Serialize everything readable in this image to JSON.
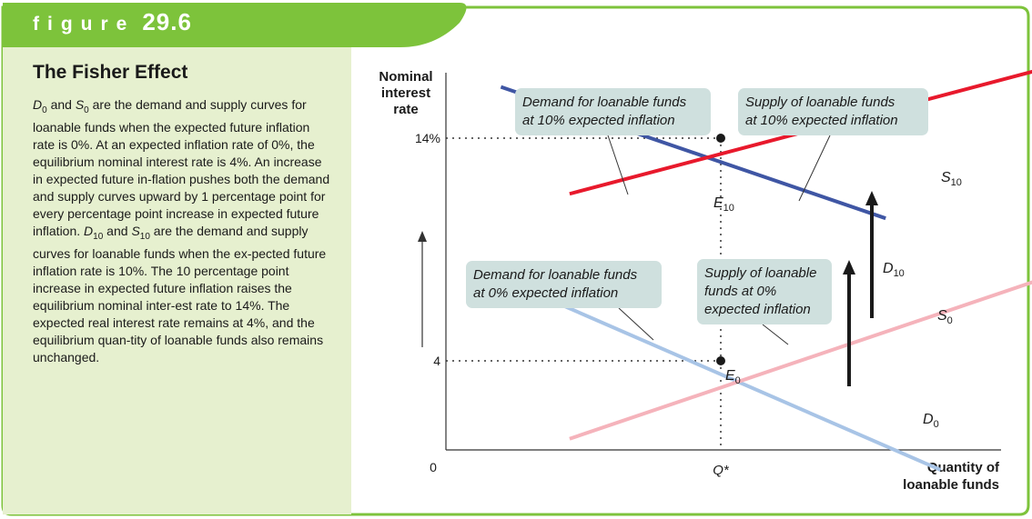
{
  "figure": {
    "label_word": "figure",
    "label_number": "29.6",
    "title": "The Fisher Effect",
    "caption": [
      {
        "text": "",
        "sym": "D",
        "sub": "0"
      },
      {
        "text": " and "
      },
      {
        "text": "",
        "sym": "S",
        "sub": "0"
      },
      {
        "text": " are the demand and supply curves for loanable funds when the expected future inflation rate is 0%. At an expected inflation rate of 0%, the equilibrium nominal interest rate is 4%. An increase in expected future in-flation pushes both the demand and supply curves upward by 1 percentage point for every percentage point increase in expected future inflation. "
      },
      {
        "text": "",
        "sym": "D",
        "sub": "10"
      },
      {
        "text": " and "
      },
      {
        "text": "",
        "sym": "S",
        "sub": "10"
      },
      {
        "text": " are the demand and supply curves for loanable funds when the ex-pected future inflation rate is 10%. The 10 percentage point increase in expected future inflation raises the equilibrium nominal inter-est rate to 14%. The expected real interest rate remains at 4%, and the equilibrium quan-tity of loanable funds also remains unchanged."
      }
    ]
  },
  "colors": {
    "frame_green": "#7dc33b",
    "caption_bg": "#e6f0cf",
    "callout_bg": "#cfe0de",
    "demand_10": "#3f56a4",
    "supply_10": "#e8192c",
    "demand_0": "#a8c4e6",
    "supply_0": "#f5b3bb"
  },
  "chart_data": {
    "type": "line",
    "y_axis_label_lines": [
      "Nominal",
      "interest",
      "rate"
    ],
    "x_axis_label_lines": [
      "Quantity of",
      "loanable funds"
    ],
    "origin_label": "0",
    "y_ticks": [
      {
        "value": 4,
        "label": "4"
      },
      {
        "value": 14,
        "label": "14%"
      }
    ],
    "x_ticks": [
      {
        "value": 1,
        "label": "Q*"
      }
    ],
    "series": [
      {
        "key": "D10",
        "base": "D",
        "sub": "10",
        "color": "#3f56a4",
        "points": [
          [
            0.2,
            16.3
          ],
          [
            1.6,
            10.4
          ]
        ]
      },
      {
        "key": "S10",
        "base": "S",
        "sub": "10",
        "color": "#e8192c",
        "points": [
          [
            0.45,
            11.5
          ],
          [
            2.2,
            17.2
          ]
        ]
      },
      {
        "key": "D0",
        "base": "D",
        "sub": "0",
        "color": "#a8c4e6",
        "points": [
          [
            0.33,
            7.0
          ],
          [
            1.8,
            -0.9
          ]
        ]
      },
      {
        "key": "S0",
        "base": "S",
        "sub": "0",
        "color": "#f5b3bb",
        "points": [
          [
            0.45,
            0.5
          ],
          [
            2.15,
            7.6
          ]
        ]
      }
    ],
    "equilibria": [
      {
        "key": "E10",
        "base": "E",
        "sub": "10",
        "x": 1,
        "y": 14
      },
      {
        "key": "E0",
        "base": "E",
        "sub": "0",
        "x": 1,
        "y": 4
      }
    ],
    "callouts": [
      {
        "key": "demand10",
        "lines": [
          "Demand for loanable funds",
          "at 10% expected inflation"
        ]
      },
      {
        "key": "supply10",
        "lines": [
          "Supply of loanable funds",
          "at 10% expected inflation"
        ]
      },
      {
        "key": "demand0",
        "lines": [
          "Demand for loanable funds",
          "at 0% expected inflation"
        ]
      },
      {
        "key": "supply0",
        "lines": [
          "Supply of loanable",
          "funds at 0%",
          "expected inflation"
        ]
      }
    ]
  }
}
